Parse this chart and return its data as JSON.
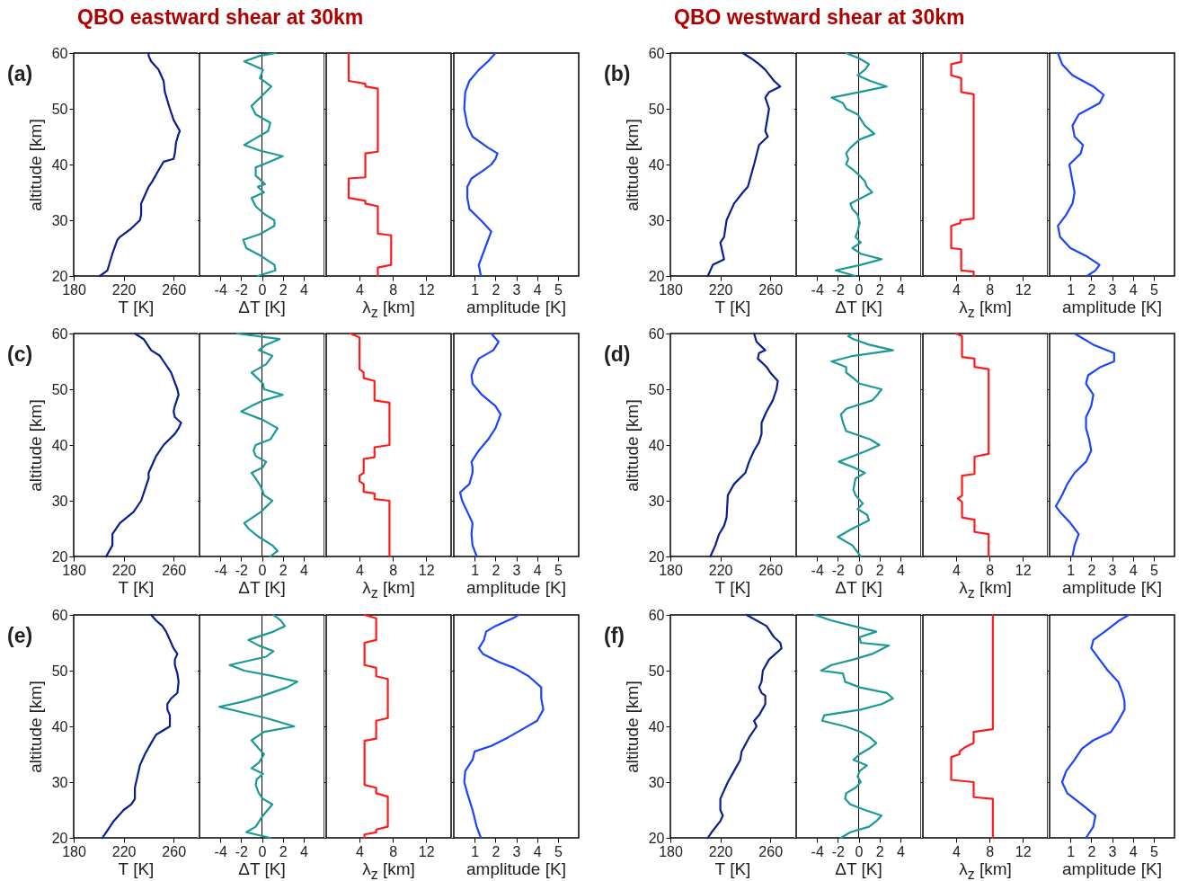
{
  "chart_data": [
    {
      "type": "line",
      "title": "QBO eastward shear at 30km",
      "annotations": [
        "(a)"
      ],
      "xlabel": "T [K]",
      "ylabel": "altitude [km]",
      "xlim": [
        180,
        280
      ],
      "xticks": [
        180,
        220,
        260
      ],
      "ylim": [
        20,
        60
      ],
      "yticks": [
        20,
        30,
        40,
        50,
        60
      ],
      "series": [
        {
          "color": "#0a1f8f",
          "x": [
            201,
            207,
            211,
            215,
            217,
            226,
            233,
            234,
            234,
            236,
            240,
            243,
            248,
            252,
            260,
            261,
            262,
            264,
            265,
            260,
            257,
            253,
            252,
            249,
            248,
            242,
            240,
            240
          ],
          "values": [
            20,
            21,
            24,
            26.5,
            27,
            28.5,
            30,
            31,
            33,
            34,
            36,
            37,
            39,
            40.5,
            41,
            42,
            44,
            45.5,
            46,
            48,
            50,
            53,
            55,
            56.5,
            57,
            58.5,
            59.5,
            60
          ]
        }
      ]
    },
    {
      "type": "line",
      "xlabel": "ΔT [K]",
      "xlim": [
        -6,
        6
      ],
      "xticks": [
        -4,
        -2,
        0,
        2,
        4
      ],
      "ylim": [
        20,
        60
      ],
      "yticks": [
        20,
        30,
        40,
        50,
        60
      ],
      "tick_labels": "x",
      "ref_lines": [
        {
          "axis": "x",
          "value": 0,
          "color": "#000000"
        }
      ],
      "series": [
        {
          "color": "#1a9a96",
          "x": [
            -0.4,
            1.3,
            1.2,
            0,
            -1.5,
            -1.8,
            -0.2,
            1.2,
            1.2,
            0.3,
            -0.6,
            -1.0,
            0.2,
            -0.4,
            0.3,
            -0.6,
            -0.6,
            0.1,
            2.0,
            -0.2,
            -1.7,
            -0.8,
            0.6,
            0.8,
            -0.6,
            -1.0,
            0.1,
            0.9,
            -0.2,
            0.1,
            -1.7,
            -0.2,
            1.3
          ],
          "values": [
            20,
            21,
            22,
            23.5,
            25,
            26.5,
            27.5,
            29,
            30,
            31,
            32.5,
            34,
            35,
            36,
            36.5,
            38,
            39.5,
            40,
            41.5,
            42.5,
            43.5,
            44.5,
            46,
            47.5,
            49,
            50.5,
            52.5,
            54,
            55.5,
            57,
            58.5,
            59.5,
            60
          ]
        }
      ]
    },
    {
      "type": "line",
      "xlabel": "λ$_{z}$ [km]",
      "xlim": [
        0,
        15
      ],
      "xticks": [
        4,
        8,
        12
      ],
      "ylim": [
        20,
        60
      ],
      "yticks": [
        20,
        30,
        40,
        50,
        60
      ],
      "tick_labels": "x",
      "series": [
        {
          "color": "#ff1a1a",
          "x": [
            6.2,
            6.2,
            7.8,
            7.8,
            6.2,
            6.2,
            4.7,
            4.7,
            2.7,
            2.7,
            4.7,
            4.7,
            6.2,
            6.2,
            4.7,
            4.7,
            2.7,
            2.7
          ],
          "values": [
            20,
            21.5,
            22,
            27.3,
            27.6,
            32.5,
            33,
            33.5,
            34,
            37.5,
            37.7,
            42,
            42.3,
            53.6,
            54,
            54.5,
            55,
            60
          ]
        }
      ]
    },
    {
      "type": "line",
      "xlabel": "amplitude [K]",
      "xlim": [
        0,
        6
      ],
      "xticks": [
        1,
        2,
        3,
        4,
        5
      ],
      "ylim": [
        20,
        60
      ],
      "yticks": [
        20,
        30,
        40,
        50,
        60
      ],
      "tick_labels": "x",
      "series": [
        {
          "color": "#1a44ff",
          "x": [
            1.3,
            1.2,
            1.5,
            1.8,
            1.3,
            0.75,
            0.65,
            0.65,
            0.85,
            1.45,
            1.8,
            2.0,
            2.1,
            1.65,
            0.9,
            0.65,
            0.5,
            0.55,
            0.75,
            1.2,
            1.65,
            2.0
          ],
          "values": [
            20,
            22,
            25,
            28,
            30,
            32,
            34,
            36,
            37.5,
            39,
            40,
            41,
            42,
            43,
            45,
            47,
            50,
            53,
            55,
            57,
            58.5,
            60
          ]
        }
      ]
    },
    {
      "type": "line",
      "title": "QBO westward shear at 30km",
      "annotations": [
        "(b)"
      ],
      "xlabel": "T [K]",
      "ylabel": "altitude [km]",
      "xlim": [
        180,
        280
      ],
      "xticks": [
        180,
        220,
        260
      ],
      "ylim": [
        20,
        60
      ],
      "yticks": [
        20,
        30,
        40,
        50,
        60
      ],
      "series": [
        {
          "color": "#0a1f8f",
          "x": [
            210,
            214,
            223,
            222,
            220,
            223,
            225,
            231,
            238,
            242,
            247,
            251,
            258,
            256,
            259,
            256,
            259,
            268,
            263,
            256,
            251,
            245,
            238
          ],
          "values": [
            20,
            22,
            23,
            24,
            26,
            27,
            30,
            33,
            35,
            36,
            40,
            43.5,
            45,
            46,
            50,
            52,
            53,
            54,
            55,
            57,
            58,
            59,
            60
          ]
        }
      ]
    },
    {
      "type": "line",
      "xlabel": "ΔT [K]",
      "xlim": [
        -6,
        6
      ],
      "xticks": [
        -4,
        -2,
        0,
        2,
        4
      ],
      "ylim": [
        20,
        60
      ],
      "yticks": [
        20,
        30,
        40,
        50,
        60
      ],
      "tick_labels": "x",
      "ref_lines": [
        {
          "axis": "x",
          "value": 0,
          "color": "#000000"
        }
      ],
      "series": [
        {
          "color": "#1a9a96",
          "x": [
            -0.3,
            -2.2,
            0.2,
            2.2,
            0.2,
            -0.6,
            0.2,
            -0.3,
            -0.1,
            0.1,
            -0.1,
            -0.6,
            -0.8,
            1.3,
            0.8,
            0.6,
            0.1,
            -0.5,
            -1.2,
            -1.0,
            -1.2,
            -0.8,
            0.1,
            1.5,
            0.6,
            -0.1,
            -1.2,
            -1.5,
            -2.6,
            0.1,
            2.7,
            1.1,
            -0.1,
            0.6,
            1.0,
            0.1,
            -1.2
          ],
          "values": [
            20,
            21,
            22,
            23,
            24,
            25,
            26,
            27,
            28,
            29.5,
            31,
            32,
            33,
            35,
            36,
            37,
            38,
            39,
            40,
            41,
            42,
            43,
            44.5,
            45.5,
            47,
            49,
            50,
            51,
            52,
            53,
            54,
            55,
            56,
            57,
            58,
            59,
            60
          ]
        }
      ]
    },
    {
      "type": "line",
      "xlabel": "λ$_{z}$ [km]",
      "xlim": [
        0,
        15
      ],
      "xticks": [
        4,
        8,
        12
      ],
      "ylim": [
        20,
        60
      ],
      "yticks": [
        20,
        30,
        40,
        50,
        60
      ],
      "tick_labels": "x",
      "series": [
        {
          "color": "#ff1a1a",
          "x": [
            6.1,
            6.1,
            4.6,
            4.6,
            3.4,
            3.4,
            4.5,
            4.5,
            6.1,
            6.1,
            4.6,
            4.6,
            3.4,
            3.4,
            4.6,
            4.6
          ],
          "values": [
            20,
            20.8,
            21,
            24.8,
            25,
            29,
            29.5,
            30,
            30.3,
            52.6,
            53,
            55.5,
            56,
            58,
            58.4,
            60
          ]
        }
      ]
    },
    {
      "type": "line",
      "xlabel": "amplitude [K]",
      "xlim": [
        0,
        6
      ],
      "xticks": [
        1,
        2,
        3,
        4,
        5
      ],
      "ylim": [
        20,
        60
      ],
      "yticks": [
        20,
        30,
        40,
        50,
        60
      ],
      "tick_labels": "x",
      "series": [
        {
          "color": "#1a44ff",
          "x": [
            1.8,
            2.2,
            2.4,
            1.8,
            1.0,
            0.5,
            0.4,
            0.8,
            1.1,
            1.2,
            1.1,
            0.95,
            1.5,
            1.6,
            1.2,
            1.1,
            1.4,
            2.4,
            2.6,
            2.1,
            1.1,
            0.6,
            0.4
          ],
          "values": [
            20,
            21,
            22,
            23.5,
            25,
            27,
            29,
            31,
            33,
            35,
            37,
            40,
            42,
            43.5,
            45,
            47,
            49,
            51,
            52.5,
            54,
            56,
            58,
            60
          ]
        }
      ]
    },
    {
      "type": "line",
      "annotations": [
        "(c)"
      ],
      "xlabel": "T [K]",
      "ylabel": "altitude [km]",
      "xlim": [
        180,
        280
      ],
      "xticks": [
        180,
        220,
        260
      ],
      "ylim": [
        20,
        60
      ],
      "yticks": [
        20,
        30,
        40,
        50,
        60
      ],
      "series": [
        {
          "color": "#0a1f8f",
          "x": [
            206,
            211,
            211,
            217,
            228,
            234,
            237,
            240,
            240,
            242,
            246,
            252,
            261,
            264,
            266,
            261,
            260,
            261,
            264,
            263,
            258,
            252,
            249,
            242,
            236,
            229
          ],
          "values": [
            20,
            22,
            24,
            26,
            28,
            30,
            32,
            34,
            35,
            36,
            38,
            40,
            42,
            43,
            44,
            45,
            46,
            47,
            49,
            50,
            53,
            55,
            56,
            57,
            59,
            60
          ]
        }
      ]
    },
    {
      "type": "line",
      "xlabel": "ΔT [K]",
      "xlim": [
        -6,
        6
      ],
      "xticks": [
        -4,
        -2,
        0,
        2,
        4
      ],
      "ylim": [
        20,
        60
      ],
      "yticks": [
        20,
        30,
        40,
        50,
        60
      ],
      "tick_labels": "x",
      "ref_lines": [
        {
          "axis": "x",
          "value": 0,
          "color": "#000000"
        }
      ],
      "series": [
        {
          "color": "#1a9a96",
          "x": [
            0.8,
            1.5,
            1.0,
            -0.3,
            -1.3,
            -1.7,
            -0.1,
            1.0,
            0.2,
            -0.1,
            -0.6,
            -1.0,
            0.1,
            0.4,
            -0.6,
            -0.8,
            -0.6,
            0.8,
            1.5,
            0.1,
            -2.0,
            -1.0,
            0.1,
            2.0,
            0.2,
            0.1,
            -1.0,
            0.4,
            1.0,
            -0.3,
            0.4,
            1.7,
            -2.4
          ],
          "values": [
            20,
            21,
            22,
            23.5,
            25,
            26,
            28,
            30,
            31,
            32.5,
            34,
            35,
            36,
            37,
            38,
            39,
            40,
            41,
            43,
            44.5,
            46,
            47,
            48,
            49,
            50,
            51,
            53,
            54.5,
            56,
            57,
            58,
            59,
            60
          ]
        }
      ]
    },
    {
      "type": "line",
      "xlabel": "λ$_{z}$ [km]",
      "xlim": [
        0,
        15
      ],
      "xticks": [
        4,
        8,
        12
      ],
      "ylim": [
        20,
        60
      ],
      "yticks": [
        20,
        30,
        40,
        50,
        60
      ],
      "tick_labels": "x",
      "series": [
        {
          "color": "#ff1a1a",
          "x": [
            7.6,
            7.6,
            5.8,
            5.8,
            4.5,
            4.5,
            4.0,
            4.0,
            4.5,
            4.5,
            5.8,
            5.8,
            7.6,
            7.6,
            5.8,
            5.8,
            4.5,
            4.5,
            4.0,
            4.0,
            2.9
          ],
          "values": [
            20,
            30,
            30.3,
            31.3,
            31.6,
            33,
            33.5,
            34.5,
            35,
            37.5,
            37.8,
            39.6,
            40,
            47.6,
            48,
            51.5,
            52,
            53,
            53.6,
            59.3,
            60
          ]
        }
      ]
    },
    {
      "type": "line",
      "xlabel": "amplitude [K]",
      "xlim": [
        0,
        6
      ],
      "xticks": [
        1,
        2,
        3,
        4,
        5
      ],
      "ylim": [
        20,
        60
      ],
      "yticks": [
        20,
        30,
        40,
        50,
        60
      ],
      "tick_labels": "x",
      "series": [
        {
          "color": "#1a44ff",
          "x": [
            1.1,
            0.9,
            0.85,
            0.9,
            0.65,
            0.4,
            0.3,
            0.75,
            0.9,
            0.9,
            0.85,
            1.2,
            1.65,
            2.0,
            2.25,
            2.0,
            1.35,
            0.9,
            0.85,
            1.0,
            1.2,
            1.9,
            2.15,
            1.8
          ],
          "values": [
            20,
            22,
            24,
            26,
            28,
            30,
            31.5,
            33,
            35,
            36,
            37,
            39,
            41,
            43,
            45.5,
            47,
            49,
            51,
            52.5,
            54,
            55.5,
            57,
            58.5,
            60
          ]
        }
      ]
    },
    {
      "type": "line",
      "annotations": [
        "(d)"
      ],
      "xlabel": "T [K]",
      "ylabel": "altitude [km]",
      "xlim": [
        180,
        280
      ],
      "xticks": [
        180,
        220,
        260
      ],
      "ylim": [
        20,
        60
      ],
      "yticks": [
        20,
        30,
        40,
        50,
        60
      ],
      "series": [
        {
          "color": "#0a1f8f",
          "x": [
            212,
            216,
            219,
            223,
            225,
            226,
            231,
            240,
            243,
            247,
            251,
            253,
            253,
            257,
            262,
            265,
            266,
            260,
            257,
            250,
            251,
            256,
            249,
            247
          ],
          "values": [
            20,
            22,
            24,
            25.5,
            27,
            31,
            33,
            35,
            37,
            39,
            40.5,
            42,
            44,
            46,
            48,
            50,
            51.5,
            53,
            54,
            55.5,
            56.5,
            57,
            58.5,
            60
          ]
        }
      ]
    },
    {
      "type": "line",
      "xlabel": "ΔT [K]",
      "xlim": [
        -6,
        6
      ],
      "xticks": [
        -4,
        -2,
        0,
        2,
        4
      ],
      "ylim": [
        20,
        60
      ],
      "yticks": [
        20,
        30,
        40,
        50,
        60
      ],
      "tick_labels": "x",
      "ref_lines": [
        {
          "axis": "x",
          "value": 0,
          "color": "#000000"
        }
      ],
      "series": [
        {
          "color": "#1a9a96",
          "x": [
            0.2,
            -0.6,
            -2.0,
            -0.6,
            1.0,
            0.8,
            -0.1,
            0.4,
            -0.3,
            -0.5,
            -0.3,
            0.6,
            -0.5,
            -1.9,
            0.8,
            2.0,
            1.1,
            -1.2,
            -1.5,
            -1.7,
            -1.2,
            1.3,
            1.8,
            2.2,
            0.1,
            -0.5,
            -1.2,
            -1.2,
            -2.6,
            -0.5,
            3.3,
            1.0,
            -0.5,
            -1.0,
            -0.6
          ],
          "values": [
            20,
            22,
            23.5,
            25,
            26.5,
            27.5,
            28.5,
            29.5,
            31,
            32,
            34,
            35,
            36,
            37,
            39,
            40,
            41,
            42.5,
            44,
            45.5,
            46.5,
            48,
            49,
            50,
            51,
            52,
            53,
            54,
            55,
            56,
            57,
            58,
            59,
            59.5,
            60
          ]
        }
      ]
    },
    {
      "type": "line",
      "xlabel": "λ$_{z}$ [km]",
      "xlim": [
        0,
        15
      ],
      "xticks": [
        4,
        8,
        12
      ],
      "ylim": [
        20,
        60
      ],
      "yticks": [
        20,
        30,
        40,
        50,
        60
      ],
      "tick_labels": "x",
      "series": [
        {
          "color": "#ff1a1a",
          "x": [
            7.9,
            7.9,
            6.2,
            6.2,
            4.7,
            4.7,
            4.2,
            4.7,
            4.7,
            6.2,
            6.2,
            7.9,
            7.9,
            6.2,
            6.2,
            4.7,
            4.7,
            4.0
          ],
          "values": [
            20,
            24,
            24.4,
            26.6,
            27,
            29.8,
            30.4,
            30.9,
            34.5,
            34.8,
            37.9,
            38.4,
            53.6,
            54,
            55.5,
            55.8,
            59.5,
            60
          ]
        }
      ]
    },
    {
      "type": "line",
      "xlabel": "amplitude [K]",
      "xlim": [
        0,
        6
      ],
      "xticks": [
        1,
        2,
        3,
        4,
        5
      ],
      "ylim": [
        20,
        60
      ],
      "yticks": [
        20,
        30,
        40,
        50,
        60
      ],
      "tick_labels": "x",
      "series": [
        {
          "color": "#1a44ff",
          "x": [
            1.1,
            1.2,
            1.4,
            1.0,
            0.5,
            0.3,
            0.6,
            0.85,
            1.2,
            1.75,
            2.0,
            1.9,
            1.75,
            1.75,
            2.0,
            2.1,
            1.75,
            1.85,
            2.45,
            3.1,
            3.1,
            2.1,
            1.2
          ],
          "values": [
            20,
            22,
            24,
            26,
            28,
            29,
            31,
            33,
            35,
            37,
            39,
            41,
            43,
            45,
            47,
            49,
            51,
            52.5,
            54,
            55,
            56.5,
            58,
            60
          ]
        }
      ]
    },
    {
      "type": "line",
      "annotations": [
        "(e)"
      ],
      "xlabel": "T [K]",
      "ylabel": "altitude [km]",
      "xlim": [
        180,
        280
      ],
      "xticks": [
        180,
        220,
        260
      ],
      "ylim": [
        20,
        60
      ],
      "yticks": [
        20,
        30,
        40,
        50,
        60
      ],
      "series": [
        {
          "color": "#0a1f8f",
          "x": [
            203,
            206,
            212,
            220,
            226,
            229,
            229,
            231,
            233,
            237,
            242,
            246,
            257,
            257,
            255,
            255,
            258,
            263,
            264,
            263,
            261,
            261,
            263,
            260,
            258,
            254,
            251,
            246,
            242
          ],
          "values": [
            20,
            21,
            23,
            25,
            26,
            27,
            29,
            31,
            33,
            35,
            37,
            38.5,
            40,
            42,
            43,
            44,
            45,
            46,
            48,
            49.5,
            51,
            52,
            53,
            54,
            55,
            57,
            58,
            59,
            60
          ]
        }
      ]
    },
    {
      "type": "line",
      "xlabel": "ΔT [K]",
      "xlim": [
        -6,
        6
      ],
      "xticks": [
        -4,
        -2,
        0,
        2,
        4
      ],
      "ylim": [
        20,
        60
      ],
      "yticks": [
        20,
        30,
        40,
        50,
        60
      ],
      "tick_labels": "x",
      "ref_lines": [
        {
          "axis": "x",
          "value": 0,
          "color": "#000000"
        }
      ],
      "series": [
        {
          "color": "#1a9a96",
          "x": [
            0.8,
            -1.5,
            -0.6,
            0.1,
            1.0,
            0.1,
            -0.3,
            -0.6,
            -0.5,
            0.1,
            -1.0,
            -0.3,
            0.2,
            -0.3,
            -1.0,
            0.2,
            3.1,
            0.4,
            -4.1,
            -1.7,
            0.1,
            2.4,
            3.4,
            1.1,
            -1.7,
            -3.1,
            0.4,
            1.1,
            -0.3,
            -1.3,
            1.1,
            2.2,
            1.8,
            1.1
          ],
          "values": [
            20,
            21,
            22,
            24,
            26,
            27,
            28,
            29.5,
            30.5,
            31.5,
            32.5,
            33.5,
            35,
            36,
            37.5,
            39,
            40,
            41.5,
            43.5,
            44.5,
            45.5,
            47,
            48,
            49,
            50,
            51,
            52.5,
            53.5,
            54.5,
            55.5,
            57,
            58,
            59,
            60
          ]
        }
      ]
    },
    {
      "type": "line",
      "xlabel": "λ$_{z}$ [km]",
      "xlim": [
        0,
        15
      ],
      "xticks": [
        4,
        8,
        12
      ],
      "ylim": [
        20,
        60
      ],
      "yticks": [
        20,
        30,
        40,
        50,
        60
      ],
      "tick_labels": "x",
      "series": [
        {
          "color": "#ff1a1a",
          "x": [
            4.6,
            4.6,
            6.0,
            6.0,
            7.4,
            7.4,
            6.0,
            6.0,
            4.6,
            4.6,
            6.0,
            6.0,
            7.4,
            7.4,
            6.0,
            6.0,
            4.6,
            4.6,
            6.0,
            6.0,
            4.6
          ],
          "values": [
            20,
            20.6,
            21,
            21.5,
            22,
            27.4,
            28,
            29,
            29.5,
            37.4,
            37.8,
            41,
            41.5,
            48.5,
            49,
            50.5,
            51,
            55,
            55.5,
            59.4,
            60
          ]
        }
      ]
    },
    {
      "type": "line",
      "xlabel": "amplitude [K]",
      "xlim": [
        0,
        6
      ],
      "xticks": [
        1,
        2,
        3,
        4,
        5
      ],
      "ylim": [
        20,
        60
      ],
      "yticks": [
        20,
        30,
        40,
        50,
        60
      ],
      "tick_labels": "x",
      "series": [
        {
          "color": "#1a44ff",
          "x": [
            1.3,
            1.1,
            0.9,
            0.65,
            0.5,
            0.55,
            0.9,
            1.0,
            1.8,
            2.6,
            3.3,
            4.0,
            4.3,
            4.2,
            4.2,
            3.6,
            2.9,
            2.2,
            1.4,
            1.2,
            1.45,
            1.55,
            2.0,
            2.9,
            3.1
          ],
          "values": [
            20,
            22,
            25,
            28,
            30,
            32,
            34,
            35.5,
            36.5,
            38,
            39.5,
            41,
            43,
            45,
            47,
            49,
            50.5,
            51.5,
            53,
            54,
            55.5,
            57,
            58,
            59.5,
            60
          ]
        }
      ]
    },
    {
      "type": "line",
      "annotations": [
        "(f)"
      ],
      "xlabel": "T [K]",
      "ylabel": "altitude [km]",
      "xlim": [
        180,
        280
      ],
      "xticks": [
        180,
        220,
        260
      ],
      "ylim": [
        20,
        60
      ],
      "yticks": [
        20,
        30,
        40,
        50,
        60
      ],
      "series": [
        {
          "color": "#0a1f8f",
          "x": [
            210,
            213,
            220,
            222,
            220,
            220,
            222,
            226,
            231,
            236,
            237,
            243,
            249,
            247,
            251,
            256,
            256,
            253,
            251,
            253,
            254,
            259,
            269,
            268,
            263,
            260,
            257,
            241
          ],
          "values": [
            20,
            21,
            23,
            24,
            25,
            27,
            28,
            30,
            32,
            34,
            35.5,
            38,
            40,
            41,
            42,
            44,
            45.5,
            46,
            47,
            48,
            50,
            52,
            54,
            55,
            56,
            57,
            58,
            60
          ]
        }
      ]
    },
    {
      "type": "line",
      "xlabel": "ΔT [K]",
      "xlim": [
        -6,
        6
      ],
      "xticks": [
        -4,
        -2,
        0,
        2,
        4
      ],
      "ylim": [
        20,
        60
      ],
      "yticks": [
        20,
        30,
        40,
        50,
        60
      ],
      "tick_labels": "x",
      "ref_lines": [
        {
          "axis": "x",
          "value": 0,
          "color": "#000000"
        }
      ],
      "series": [
        {
          "color": "#1a9a96",
          "x": [
            -1.7,
            -0.8,
            1.0,
            1.7,
            2.2,
            0.6,
            -0.8,
            -1.3,
            -1.2,
            -0.3,
            0.2,
            -0.1,
            0.1,
            0.8,
            -0.5,
            0.1,
            1.0,
            1.7,
            1.1,
            0.2,
            -1.3,
            -3.5,
            -3.3,
            0.2,
            2.2,
            3.3,
            2.7,
            0.1,
            -1.3,
            -1.5,
            -3.6,
            -2.6,
            -0.5,
            1.3,
            2.9,
            0.2,
            0.1,
            1.7,
            -0.5,
            -2.6,
            -4.2
          ],
          "values": [
            20,
            21,
            22,
            23,
            24,
            25,
            26,
            27,
            28,
            29,
            30,
            31,
            32,
            33,
            34,
            35,
            36,
            37,
            38,
            39,
            40,
            41,
            42,
            43,
            44,
            45,
            46,
            47,
            48,
            49.5,
            50,
            51,
            52,
            53,
            54.5,
            55,
            56,
            57,
            58,
            59,
            60
          ]
        }
      ]
    },
    {
      "type": "line",
      "xlabel": "λ$_{z}$ [km]",
      "xlim": [
        0,
        15
      ],
      "xticks": [
        4,
        8,
        12
      ],
      "ylim": [
        20,
        60
      ],
      "yticks": [
        20,
        30,
        40,
        50,
        60
      ],
      "tick_labels": "x",
      "series": [
        {
          "color": "#ff1a1a",
          "x": [
            8.4,
            8.4,
            6.1,
            6.1,
            3.4,
            3.4,
            4.4,
            4.4,
            5.0,
            6.1,
            6.1,
            8.4,
            8.4
          ],
          "values": [
            20,
            27,
            27.3,
            30,
            30.4,
            34.5,
            35,
            35.5,
            36.2,
            37,
            39,
            39.5,
            60
          ]
        }
      ]
    },
    {
      "type": "line",
      "xlabel": "amplitude [K]",
      "xlim": [
        0,
        6
      ],
      "xticks": [
        1,
        2,
        3,
        4,
        5
      ],
      "ylim": [
        20,
        60
      ],
      "yticks": [
        20,
        30,
        40,
        50,
        60
      ],
      "tick_labels": "x",
      "series": [
        {
          "color": "#1a44ff",
          "x": [
            1.75,
            2.1,
            2.2,
            1.55,
            0.85,
            0.6,
            0.8,
            1.2,
            1.55,
            2.1,
            2.95,
            3.3,
            3.6,
            3.6,
            3.5,
            3.3,
            2.8,
            2.4,
            2.0,
            2.1,
            2.65,
            3.35,
            3.8
          ],
          "values": [
            20,
            22,
            24,
            26,
            28,
            30,
            32,
            34,
            36,
            37.5,
            39,
            41,
            43,
            44.5,
            46,
            48,
            50,
            52,
            54,
            55.5,
            57,
            59,
            60
          ]
        }
      ]
    }
  ]
}
